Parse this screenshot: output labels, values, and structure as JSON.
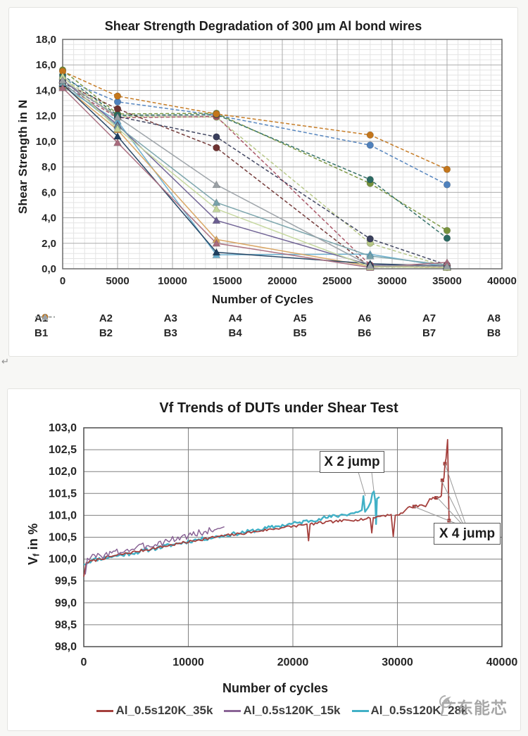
{
  "page": {
    "stray_glyph": "↵",
    "watermark_text": "广东能芯"
  },
  "chart_data": [
    {
      "type": "line",
      "title": "Shear Strength Degradation of 300 μm Al bond wires",
      "xlabel": "Number of Cycles",
      "ylabel": "Shear Strength in N",
      "xlim": [
        0,
        40000
      ],
      "ylim": [
        0,
        18
      ],
      "grid": {
        "minor_x_step": 1000,
        "minor_y_step": 0.4,
        "legend_position": "bottom"
      },
      "x_tick_values": [
        0,
        5000,
        10000,
        15000,
        20000,
        25000,
        30000,
        35000,
        40000
      ],
      "x_tick_labels": [
        "0",
        "5000",
        "10000",
        "15000",
        "20000",
        "25000",
        "30000",
        "35000",
        "40000"
      ],
      "y_tick_values": [
        18,
        16,
        14,
        12,
        10,
        8,
        6,
        4,
        2,
        0
      ],
      "y_tick_labels": [
        "18,0",
        "16,0",
        "14,0",
        "12,0",
        "10,0",
        "8,0",
        "6,0",
        "4,0",
        "2,0",
        "0,0"
      ],
      "x": [
        0,
        5000,
        14000,
        28000,
        35000
      ],
      "series": [
        {
          "name": "A1",
          "color": "#4f81bd",
          "marker": "circle",
          "dashed": true,
          "values": [
            14.9,
            13.1,
            12.05,
            9.7,
            6.6
          ]
        },
        {
          "name": "A2",
          "color": "#77933c",
          "marker": "circle",
          "dashed": true,
          "values": [
            15.6,
            12.15,
            12.2,
            6.7,
            3.0
          ]
        },
        {
          "name": "A3",
          "color": "#b5c684",
          "marker": "circle",
          "dashed": true,
          "values": [
            15.0,
            11.95,
            11.9,
            2.0,
            0.15
          ]
        },
        {
          "name": "A4",
          "color": "#a65061",
          "marker": "circle",
          "dashed": true,
          "values": [
            14.45,
            11.85,
            11.95,
            0.3,
            0.15
          ]
        },
        {
          "name": "A5",
          "color": "#6e3230",
          "marker": "circle",
          "dashed": true,
          "values": [
            14.6,
            12.55,
            9.5,
            0.15,
            0.1
          ]
        },
        {
          "name": "A6",
          "color": "#3a3f5c",
          "marker": "circle",
          "dashed": true,
          "values": [
            14.7,
            11.95,
            10.35,
            2.35,
            0.3
          ]
        },
        {
          "name": "A7",
          "color": "#2b6a62",
          "marker": "circle",
          "dashed": true,
          "values": [
            15.2,
            12.05,
            12.1,
            7.0,
            2.4
          ]
        },
        {
          "name": "A8",
          "color": "#c4761b",
          "marker": "circle",
          "dashed": true,
          "values": [
            15.5,
            13.55,
            12.15,
            10.5,
            7.8
          ]
        },
        {
          "name": "B1",
          "color": "#68aecd",
          "marker": "triangle",
          "dashed": false,
          "values": [
            14.3,
            11.6,
            1.1,
            1.15,
            0.15
          ]
        },
        {
          "name": "B2",
          "color": "#6a5d90",
          "marker": "triangle",
          "dashed": false,
          "values": [
            14.85,
            11.3,
            3.8,
            0.3,
            0.25
          ]
        },
        {
          "name": "B3",
          "color": "#d8a35f",
          "marker": "triangle",
          "dashed": false,
          "values": [
            14.4,
            10.9,
            2.3,
            0.2,
            0.1
          ]
        },
        {
          "name": "B4",
          "color": "#1f3f5f",
          "marker": "triangle",
          "dashed": false,
          "values": [
            14.5,
            10.4,
            1.3,
            0.4,
            0.2
          ]
        },
        {
          "name": "B5",
          "color": "#77a2aa",
          "marker": "triangle",
          "dashed": false,
          "values": [
            14.6,
            11.2,
            5.2,
            1.0,
            0.3
          ]
        },
        {
          "name": "B6",
          "color": "#a86b7d",
          "marker": "triangle",
          "dashed": false,
          "values": [
            14.2,
            9.9,
            2.0,
            0.1,
            0.5
          ]
        },
        {
          "name": "B7",
          "color": "#c3d69b",
          "marker": "triangle",
          "dashed": false,
          "values": [
            15.1,
            11.0,
            4.7,
            0.15,
            0.1
          ]
        },
        {
          "name": "B8",
          "color": "#9aa0a5",
          "marker": "triangle",
          "dashed": false,
          "values": [
            14.8,
            11.9,
            6.6,
            0.25,
            0.2
          ]
        }
      ],
      "legend_rows": [
        [
          "A1",
          "A2",
          "A3",
          "A4",
          "A5",
          "A6",
          "A7",
          "A8"
        ],
        [
          "B1",
          "B2",
          "B3",
          "B4",
          "B5",
          "B6",
          "B7",
          "B8"
        ]
      ]
    },
    {
      "type": "line",
      "title": "Vf Trends of DUTs under Shear Test",
      "xlabel": "Number of cycles",
      "ylabel_parts": {
        "main": "V",
        "sub": "f",
        "rest": " in %"
      },
      "xlim": [
        0,
        40000
      ],
      "ylim": [
        98,
        103
      ],
      "grid": {
        "minor": false,
        "legend_position": "bottom"
      },
      "x_tick_values": [
        0,
        10000,
        20000,
        30000,
        40000
      ],
      "x_tick_labels": [
        "0",
        "10000",
        "20000",
        "30000",
        "40000"
      ],
      "y_tick_values": [
        103,
        102.5,
        102,
        101.5,
        101,
        100.5,
        100,
        99.5,
        99,
        98.5,
        98
      ],
      "y_tick_labels": [
        "103,0",
        "102,5",
        "102,0",
        "101,5",
        "101,0",
        "100,5",
        "100,0",
        "99,5",
        "99,0",
        "98,5",
        "98,0"
      ],
      "series": [
        {
          "name": "Al_0.5s120K_35k",
          "color": "#a43f3c",
          "width": 1.8,
          "noise": 0.03,
          "seed": 7,
          "z": 2,
          "points": [
            [
              0,
              99.6
            ],
            [
              250,
              99.92
            ],
            [
              1500,
              100.0
            ],
            [
              3000,
              100.08
            ],
            [
              5000,
              100.17
            ],
            [
              7000,
              100.26
            ],
            [
              9000,
              100.35
            ],
            [
              11000,
              100.44
            ],
            [
              13000,
              100.52
            ],
            [
              15000,
              100.58
            ],
            [
              17000,
              100.65
            ],
            [
              19000,
              100.72
            ],
            [
              21000,
              100.78
            ],
            [
              21350,
              100.8
            ],
            [
              21500,
              100.42
            ],
            [
              21650,
              100.8
            ],
            [
              24000,
              100.86
            ],
            [
              26000,
              100.9
            ],
            [
              27400,
              100.93
            ],
            [
              27550,
              100.6
            ],
            [
              27700,
              100.95
            ],
            [
              28500,
              100.99
            ],
            [
              29400,
              101.02
            ],
            [
              29600,
              100.52
            ],
            [
              29800,
              101.0
            ],
            [
              30500,
              101.05
            ],
            [
              31000,
              101.18
            ],
            [
              31600,
              101.2
            ],
            [
              32300,
              101.24
            ],
            [
              32700,
              101.2
            ],
            [
              33100,
              101.38
            ],
            [
              33700,
              101.4
            ],
            [
              34100,
              101.42
            ],
            [
              34200,
              101.45
            ],
            [
              34300,
              101.8
            ],
            [
              34450,
              101.85
            ],
            [
              34550,
              102.18
            ],
            [
              34650,
              102.3
            ],
            [
              34800,
              102.73
            ],
            [
              34880,
              101.6
            ],
            [
              34940,
              100.88
            ]
          ],
          "markers": [
            [
              31600,
              101.2
            ],
            [
              33700,
              101.4
            ],
            [
              34300,
              101.8
            ],
            [
              34550,
              102.18
            ],
            [
              34940,
              100.88
            ]
          ]
        },
        {
          "name": "Al_0.5s120K_15k",
          "color": "#8a6496",
          "width": 1.5,
          "noise": 0.085,
          "seed": 3,
          "z": 3,
          "points": [
            [
              150,
              99.65
            ],
            [
              350,
              100.02
            ],
            [
              2000,
              100.1
            ],
            [
              4000,
              100.2
            ],
            [
              6000,
              100.3
            ],
            [
              8000,
              100.42
            ],
            [
              10000,
              100.54
            ],
            [
              11500,
              100.62
            ],
            [
              13000,
              100.7
            ],
            [
              13450,
              100.74
            ]
          ],
          "markers": []
        },
        {
          "name": "Al_0.5s120K_28k",
          "color": "#41b0c6",
          "width": 2.4,
          "noise": 0.045,
          "seed": 11,
          "z": 1,
          "points": [
            [
              0,
              99.88
            ],
            [
              800,
              99.98
            ],
            [
              2500,
              100.05
            ],
            [
              4500,
              100.13
            ],
            [
              6500,
              100.23
            ],
            [
              8500,
              100.33
            ],
            [
              10500,
              100.43
            ],
            [
              12500,
              100.5
            ],
            [
              14500,
              100.58
            ],
            [
              16500,
              100.66
            ],
            [
              18500,
              100.75
            ],
            [
              20500,
              100.83
            ],
            [
              22500,
              100.92
            ],
            [
              24500,
              101.0
            ],
            [
              26200,
              101.07
            ],
            [
              26600,
              101.12
            ],
            [
              26750,
              101.44
            ],
            [
              26900,
              101.08
            ],
            [
              27200,
              101.18
            ],
            [
              27450,
              101.3
            ],
            [
              27600,
              101.5
            ],
            [
              27750,
              101.55
            ],
            [
              27880,
              101.33
            ],
            [
              27960,
              100.8
            ],
            [
              28050,
              101.38
            ],
            [
              28280,
              101.42
            ]
          ],
          "markers": []
        }
      ],
      "annotations": [
        {
          "text": "X 2 jump",
          "leaders": [
            [
              498,
              118,
              508,
              152
            ],
            [
              517,
              118,
              520,
              145
            ]
          ]
        },
        {
          "text": "X 4 jump",
          "leaders": [
            [
              649,
              196,
              577,
              167
            ],
            [
              649,
              196,
              609,
              153
            ],
            [
              649,
              196,
              616,
              130
            ],
            [
              651,
              194,
              621,
              106
            ]
          ]
        }
      ]
    }
  ]
}
